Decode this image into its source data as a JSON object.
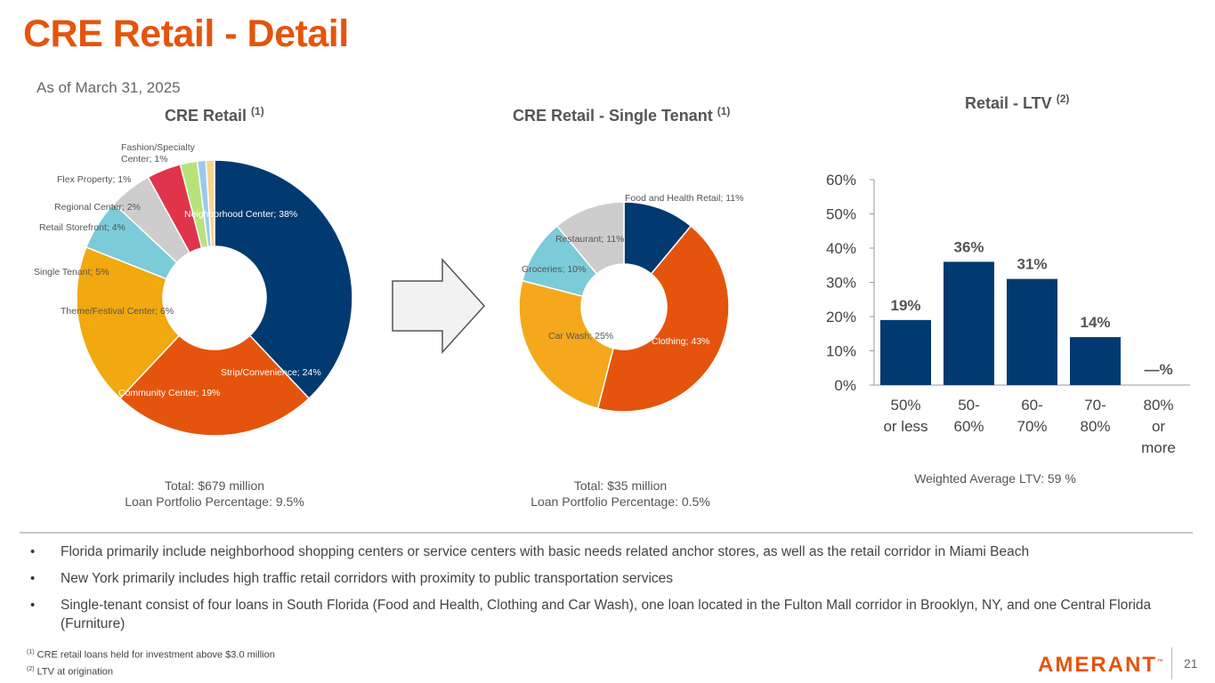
{
  "title": "CRE Retail - Detail",
  "as_of_prefix": "As of",
  "as_of_date": "March 31, 2025",
  "colors": {
    "brand": "#e5540c",
    "navy": "#003a70",
    "orange": "#e5540c",
    "gold": "#f2a80f",
    "teal": "#7ccbd9",
    "grey": "#cdcdcd",
    "red": "#e0344a",
    "lime": "#b9e27b",
    "lightblue": "#9cc8f0",
    "tan": "#f6d58b"
  },
  "chart_data": [
    {
      "type": "pie",
      "id": "cre-retail",
      "title": "CRE Retail",
      "title_note": "(1)",
      "slices": [
        {
          "label": "Neighborhood Center; 38%",
          "value": 38,
          "color": "#003a70"
        },
        {
          "label": "Strip/Convenience; 24%",
          "value": 24,
          "color": "#e5540c"
        },
        {
          "label": "Community Center; 19%",
          "value": 19,
          "color": "#f2a80f"
        },
        {
          "label": "Theme/Festival Center; 6%",
          "value": 6,
          "color": "#7ccbd9"
        },
        {
          "label": "Single Tenant; 5%",
          "value": 5,
          "color": "#cdcdcd"
        },
        {
          "label": "Retail Storefront; 4%",
          "value": 4,
          "color": "#e0344a"
        },
        {
          "label": "Regional Center; 2%",
          "value": 2,
          "color": "#b9e27b"
        },
        {
          "label": "Flex Property; 1%",
          "value": 1,
          "color": "#9cc8f0"
        },
        {
          "label": "Fashion/Specialty Center; 1%",
          "value": 1,
          "color": "#f6d58b"
        }
      ],
      "total_line": "Total: $679 million",
      "portfolio_line": "Loan Portfolio Percentage: 9.5%"
    },
    {
      "type": "pie",
      "id": "cre-single-tenant",
      "title": "CRE Retail - Single Tenant",
      "title_note": "(1)",
      "slices": [
        {
          "label": "Food and Health Retail; 11%",
          "value": 11,
          "color": "#003a70"
        },
        {
          "label": "Clothing; 43%",
          "value": 43,
          "color": "#e5540c"
        },
        {
          "label": "Car Wash; 25%",
          "value": 25,
          "color": "#f5a81c"
        },
        {
          "label": "Groceries; 10%",
          "value": 10,
          "color": "#7ccbd9"
        },
        {
          "label": "Restaurant; 11%",
          "value": 11,
          "color": "#cdcdcd"
        }
      ],
      "total_line": "Total:  $35 million",
      "portfolio_line": "Loan Portfolio Percentage: 0.5%"
    },
    {
      "type": "bar",
      "id": "retail-ltv",
      "title": "Retail - LTV",
      "title_note": "(2)",
      "categories": [
        [
          "50%",
          "or less"
        ],
        [
          "50-",
          "60%"
        ],
        [
          "60-",
          "70%"
        ],
        [
          "70-",
          "80%"
        ],
        [
          "80%",
          "or",
          "more"
        ]
      ],
      "values": [
        19,
        36,
        31,
        14,
        0
      ],
      "data_labels": [
        "19%",
        "36%",
        "31%",
        "14%",
        "—%"
      ],
      "ylim": [
        0,
        60
      ],
      "yticks": [
        "0%",
        "10%",
        "20%",
        "30%",
        "40%",
        "50%",
        "60%"
      ],
      "color": "#003a70",
      "footer": "Weighted Average LTV:  59 %"
    }
  ],
  "arrow_label": "arrow",
  "bullets": [
    "Florida primarily include neighborhood shopping centers or service centers with basic needs related anchor stores, as well as the retail corridor in Miami Beach",
    "New York primarily includes high traffic retail corridors with proximity to public transportation services",
    "Single-tenant consist of four loans in  South Florida (Food and Health, Clothing and Car Wash),  one loan located in the Fulton Mall corridor in Brooklyn, NY, and one Central Florida (Furniture)"
  ],
  "bullet_symbol": "•",
  "footnotes": [
    {
      "mark": "(1)",
      "text": "CRE retail loans held for investment  above $3.0 million"
    },
    {
      "mark": "(2)",
      "text": "LTV at origination"
    }
  ],
  "logo_text": "AMERANT",
  "logo_mark": "™",
  "page_number": "21"
}
